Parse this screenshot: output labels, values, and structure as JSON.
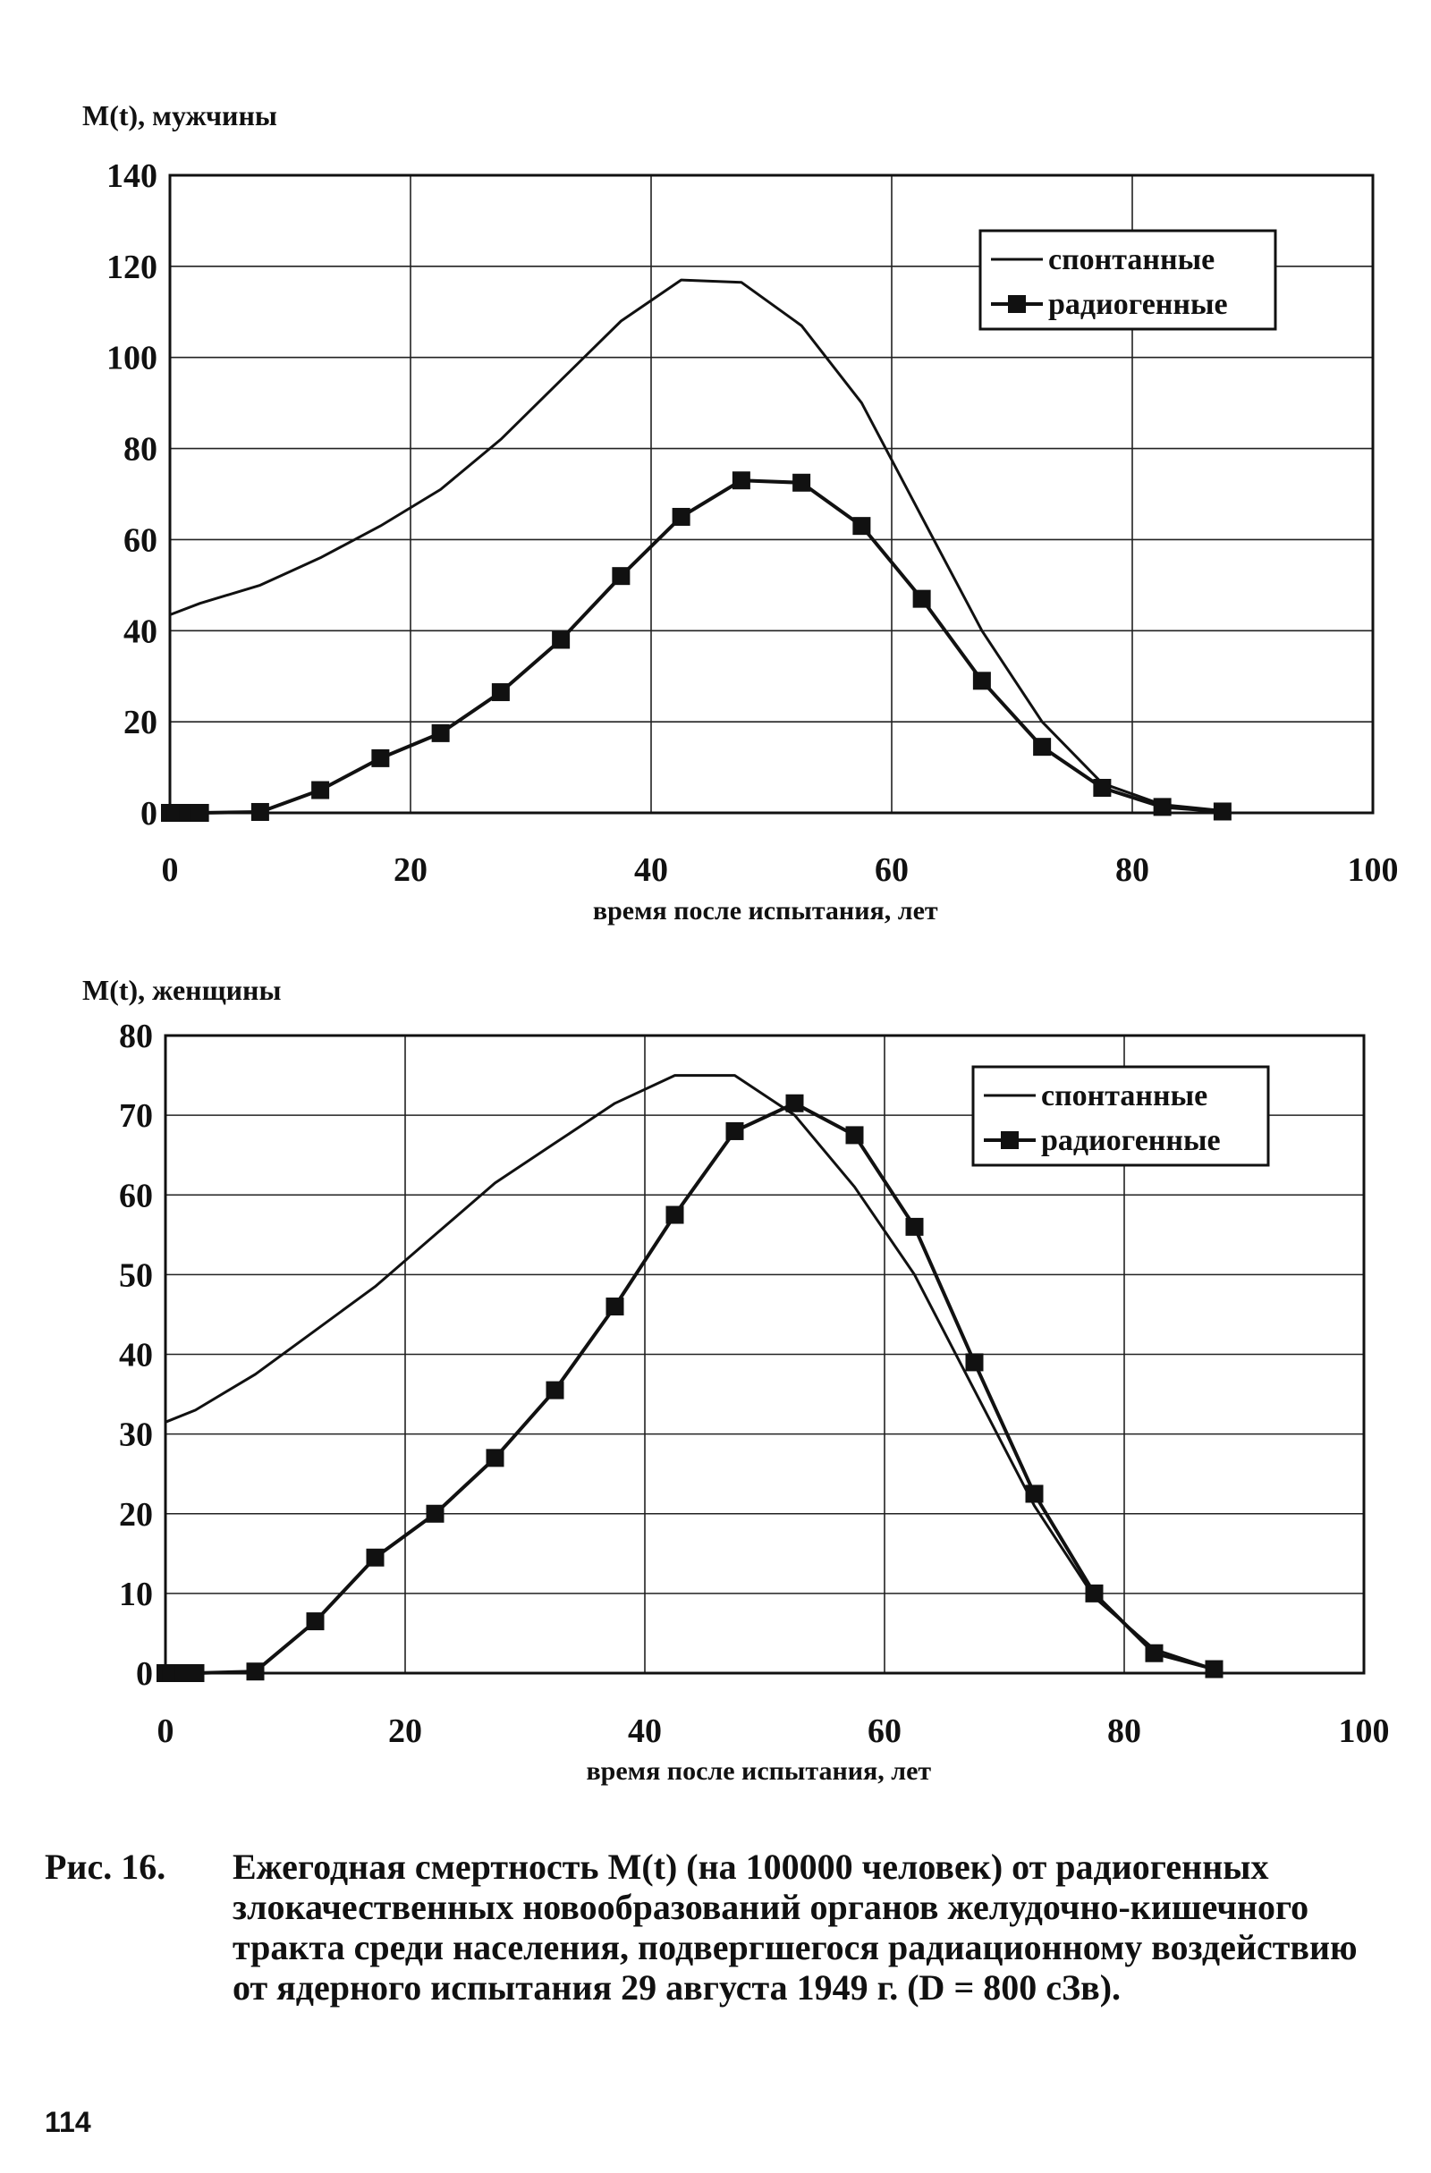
{
  "figure": {
    "number_label": "Рис. 16.",
    "caption": "Ежегодная смертность M(t) (на 100000 человек) от радиогенных злокачественных новообразований органов желудочно-кишечного тракта среди населения, подвергшегося радиационному воздействию от ядерного испытания 29 августа 1949 г. (D = 800 сЗв).",
    "page_number": "114"
  },
  "chart_data": [
    {
      "type": "line",
      "title": "",
      "ylabel": "M(t), мужчины",
      "xlabel": "время после испытания, лет",
      "xlim": [
        0,
        100
      ],
      "ylim": [
        0,
        140
      ],
      "xticks": [
        0,
        20,
        40,
        60,
        80,
        100
      ],
      "yticks": [
        0,
        20,
        40,
        60,
        80,
        100,
        120,
        140
      ],
      "grid": true,
      "legend_position": "top-right",
      "series": [
        {
          "name": "спонтанные",
          "marker": "none",
          "x": [
            0,
            2.5,
            7.5,
            12.5,
            17.5,
            22.5,
            27.5,
            32.5,
            37.5,
            42.5,
            47.5,
            52.5,
            57.5,
            62.5,
            67.5,
            72.5,
            77.5,
            82.5,
            87.5
          ],
          "y": [
            43.5,
            46,
            50,
            56,
            63,
            71,
            82,
            95,
            108,
            117,
            116.5,
            107,
            90,
            65,
            40,
            20,
            6.5,
            1.8,
            0.5
          ]
        },
        {
          "name": "радиогенные",
          "marker": "square",
          "x": [
            0,
            0.5,
            1.5,
            2.5,
            7.5,
            12.5,
            17.5,
            22.5,
            27.5,
            32.5,
            37.5,
            42.5,
            47.5,
            52.5,
            57.5,
            62.5,
            67.5,
            72.5,
            77.5,
            82.5,
            87.5
          ],
          "y": [
            0,
            0,
            0,
            0,
            0.2,
            5,
            12,
            17.5,
            26.5,
            38,
            52,
            65,
            73,
            72.5,
            63,
            47,
            29,
            14.5,
            5.5,
            1.3,
            0.3
          ]
        }
      ]
    },
    {
      "type": "line",
      "title": "",
      "ylabel": "M(t), женщины",
      "xlabel": "время после испытания, лет",
      "xlim": [
        0,
        100
      ],
      "ylim": [
        0,
        80
      ],
      "xticks": [
        0,
        20,
        40,
        60,
        80,
        100
      ],
      "yticks": [
        0,
        10,
        20,
        30,
        40,
        50,
        60,
        70,
        80
      ],
      "grid": true,
      "legend_position": "top-right",
      "series": [
        {
          "name": "спонтанные",
          "marker": "none",
          "x": [
            0,
            2.5,
            7.5,
            12.5,
            17.5,
            22.5,
            27.5,
            32.5,
            37.5,
            42.5,
            47.5,
            52.5,
            57.5,
            62.5,
            67.5,
            72.5,
            77.5,
            82.5,
            87.5
          ],
          "y": [
            31.5,
            33,
            37.5,
            43,
            48.5,
            55,
            61.5,
            66.5,
            71.5,
            75,
            75,
            70,
            61,
            50,
            35.5,
            21,
            9.5,
            3,
            0.5
          ]
        },
        {
          "name": "радиогенные",
          "marker": "square",
          "x": [
            0,
            0.5,
            1.5,
            2.5,
            7.5,
            12.5,
            17.5,
            22.5,
            27.5,
            32.5,
            37.5,
            42.5,
            47.5,
            52.5,
            57.5,
            62.5,
            67.5,
            72.5,
            77.5,
            82.5,
            87.5
          ],
          "y": [
            0,
            0,
            0,
            0,
            0.2,
            6.5,
            14.5,
            20,
            27,
            35.5,
            46,
            57.5,
            68,
            71.5,
            67.5,
            56,
            39,
            22.5,
            10,
            2.5,
            0.5
          ]
        }
      ]
    }
  ]
}
